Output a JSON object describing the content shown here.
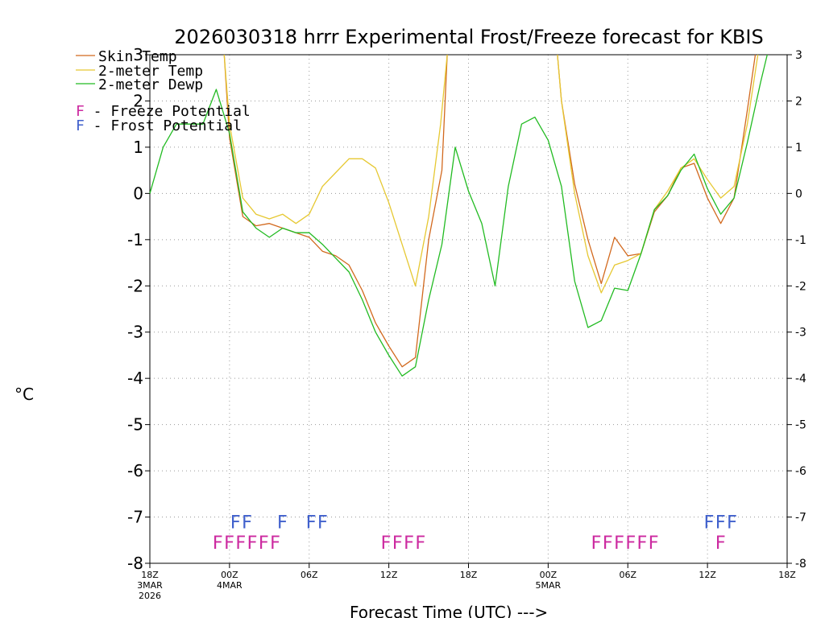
{
  "colors": {
    "skin": "#d2691e",
    "temp": "#e6c832",
    "dewp": "#22bb22",
    "freeze": "#cc2aa0",
    "frost": "#4060cc"
  },
  "chart_data": {
    "type": "line",
    "title": "2026030318 hrrr Experimental Frost/Freeze forecast for KBIS",
    "ylabel": "°C",
    "xlabel": "Forecast Time (UTC) --->",
    "ylim": [
      -8,
      3
    ],
    "xlim": [
      0,
      48
    ],
    "yticks": [
      3,
      2,
      1,
      0,
      -1,
      -2,
      -3,
      -4,
      -5,
      -6,
      -7,
      -8
    ],
    "xticks": [
      {
        "x": 0,
        "label": "18Z",
        "sub1": "3MAR",
        "sub2": "2026"
      },
      {
        "x": 6,
        "label": "00Z",
        "sub1": "4MAR",
        "sub2": ""
      },
      {
        "x": 12,
        "label": "06Z",
        "sub1": "",
        "sub2": ""
      },
      {
        "x": 18,
        "label": "12Z",
        "sub1": "",
        "sub2": ""
      },
      {
        "x": 24,
        "label": "18Z",
        "sub1": "",
        "sub2": ""
      },
      {
        "x": 30,
        "label": "00Z",
        "sub1": "5MAR",
        "sub2": ""
      },
      {
        "x": 36,
        "label": "06Z",
        "sub1": "",
        "sub2": ""
      },
      {
        "x": 42,
        "label": "12Z",
        "sub1": "",
        "sub2": ""
      },
      {
        "x": 48,
        "label": "18Z",
        "sub1": "",
        "sub2": ""
      }
    ],
    "series": [
      {
        "name": "Skin Temp",
        "x": [
          5.6,
          6,
          7,
          8,
          9,
          10,
          11,
          12,
          13,
          14,
          15,
          16,
          17,
          18,
          19,
          20,
          21,
          22,
          22.4,
          null,
          30.7,
          31,
          32,
          33,
          34,
          35,
          36,
          37,
          38,
          39,
          40,
          41,
          42,
          43,
          44,
          45,
          45.6
        ],
        "values": [
          3,
          1.2,
          -0.5,
          -0.7,
          -0.65,
          -0.75,
          -0.85,
          -0.95,
          -1.25,
          -1.35,
          -1.55,
          -2.1,
          -2.8,
          -3.3,
          -3.75,
          -3.55,
          -1,
          0.5,
          3,
          null,
          3,
          2,
          0.2,
          -1,
          -1.95,
          -0.95,
          -1.35,
          -1.3,
          -0.4,
          -0.05,
          0.55,
          0.65,
          -0.1,
          -0.65,
          -0.1,
          1.8,
          3
        ]
      },
      {
        "name": "2-meter Temp",
        "x": [
          5.6,
          6,
          7,
          8,
          9,
          10,
          11,
          12,
          13,
          14,
          15,
          16,
          17,
          18,
          19,
          20,
          21,
          21.9,
          22.4,
          null,
          30.7,
          31,
          32,
          33,
          34,
          35,
          36,
          37,
          38,
          39,
          40,
          41,
          42,
          43,
          44,
          45,
          45.8
        ],
        "values": [
          3,
          1.5,
          -0.1,
          -0.45,
          -0.55,
          -0.45,
          -0.65,
          -0.45,
          0.15,
          0.45,
          0.75,
          0.75,
          0.55,
          -0.2,
          -1.1,
          -2,
          -0.5,
          1.5,
          3,
          null,
          3,
          2,
          0,
          -1.35,
          -2.15,
          -1.55,
          -1.45,
          -1.3,
          -0.35,
          0.05,
          0.55,
          0.75,
          0.3,
          -0.1,
          0.15,
          1.5,
          3
        ]
      },
      {
        "name": "2-meter Dewp",
        "x": [
          0,
          1,
          2,
          3,
          4,
          5,
          6,
          7,
          8,
          9,
          10,
          11,
          12,
          13,
          14,
          15,
          16,
          17,
          18,
          19,
          20,
          21,
          22,
          23,
          24,
          25,
          26,
          27,
          28,
          29,
          30,
          31,
          32,
          33,
          34,
          35,
          36,
          37,
          38,
          39,
          40,
          41,
          42,
          43,
          44,
          45,
          46,
          46.5
        ],
        "values": [
          0,
          1,
          1.5,
          1.5,
          1.5,
          2.25,
          1.3,
          -0.4,
          -0.75,
          -0.95,
          -0.75,
          -0.85,
          -0.85,
          -1.1,
          -1.4,
          -1.7,
          -2.3,
          -3,
          -3.5,
          -3.95,
          -3.75,
          -2.3,
          -1.1,
          1,
          0.05,
          -0.65,
          -2,
          0.15,
          1.5,
          1.65,
          1.15,
          0.15,
          -1.9,
          -2.9,
          -2.75,
          -2.05,
          -2.1,
          -1.3,
          -0.35,
          -0.05,
          0.5,
          0.85,
          0.1,
          -0.45,
          -0.1,
          1.1,
          2.4,
          3
        ]
      }
    ],
    "freeze_marks": [
      {
        "x": 7.3,
        "text": "FFFFFF"
      },
      {
        "x": 19.1,
        "text": "FFFF"
      },
      {
        "x": 35.8,
        "text": "FFFFFF"
      },
      {
        "x": 43,
        "text": "F"
      }
    ],
    "frost_marks": [
      {
        "x": 6.9,
        "text": "FF"
      },
      {
        "x": 10,
        "text": "F"
      },
      {
        "x": 12.6,
        "text": "FF"
      },
      {
        "x": 43,
        "text": "FFF"
      }
    ],
    "freeze_y": -7.55,
    "frost_y": -7.1,
    "legend": {
      "skin": "Skin Temp",
      "temp": "2-meter Temp",
      "dewp": "2-meter Dewp",
      "freeze_letter": "F",
      "freeze_text": " - Freeze Potential",
      "frost_letter": "F",
      "frost_text": " - Frost Potential"
    }
  }
}
